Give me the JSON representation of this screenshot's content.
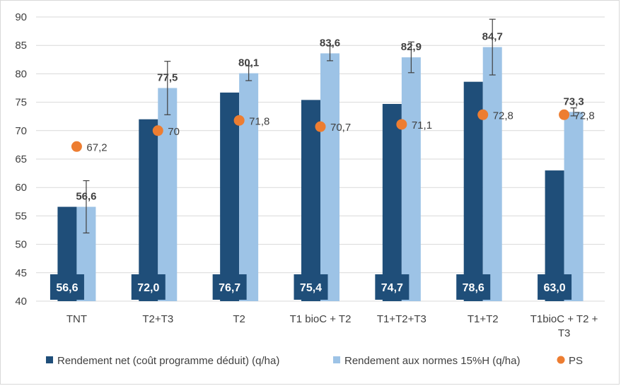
{
  "chart_data": {
    "type": "bar",
    "title": "",
    "xlabel": "",
    "ylabel": "",
    "ylim": [
      40,
      90
    ],
    "yticks": [
      40,
      45,
      50,
      55,
      60,
      65,
      70,
      75,
      80,
      85,
      90
    ],
    "grid": true,
    "legend_position": "bottom",
    "categories": [
      "TNT",
      "T2+T3",
      "T2",
      "T1 bioC + T2",
      "T1+T2+T3",
      "T1+T2",
      "T1bioC + T2 + T3"
    ],
    "series": [
      {
        "name": "Rendement net (coût programme déduit) (q/ha)",
        "kind": "bar",
        "color": "#1f4e79",
        "values": [
          56.6,
          72.0,
          76.7,
          75.4,
          74.7,
          78.6,
          63.0
        ],
        "labels": [
          "56,6",
          "72,0",
          "76,7",
          "75,4",
          "74,7",
          "78,6",
          "63,0"
        ]
      },
      {
        "name": "Rendement aux normes 15%H (q/ha)",
        "kind": "bar",
        "color": "#9dc3e6",
        "values": [
          56.6,
          77.5,
          80.1,
          83.6,
          82.9,
          84.7,
          73.3
        ],
        "labels": [
          "56,6",
          "77,5",
          "80,1",
          "83,6",
          "82,9",
          "84,7",
          "73,3"
        ],
        "error_low": [
          52.0,
          72.8,
          78.8,
          82.3,
          80.2,
          79.8,
          72.6
        ],
        "error_high": [
          61.2,
          82.2,
          81.4,
          84.9,
          85.6,
          89.6,
          74.0
        ]
      },
      {
        "name": "PS",
        "kind": "scatter",
        "color": "#ed7d31",
        "values": [
          67.2,
          70,
          71.8,
          70.7,
          71.1,
          72.8,
          72.8
        ],
        "labels": [
          "67,2",
          "70",
          "71,8",
          "70,7",
          "71,1",
          "72,8",
          "72,8"
        ]
      }
    ]
  }
}
